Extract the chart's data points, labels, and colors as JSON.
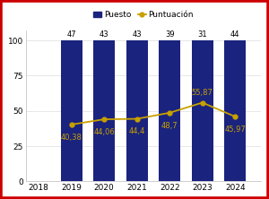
{
  "years": [
    2018,
    2019,
    2020,
    2021,
    2022,
    2023,
    2024
  ],
  "bar_years": [
    2019,
    2020,
    2021,
    2022,
    2023,
    2024
  ],
  "bar_values": [
    100,
    100,
    100,
    100,
    100,
    100
  ],
  "bar_labels": [
    "47",
    "43",
    "43",
    "39",
    "31",
    "44"
  ],
  "line_years": [
    2019,
    2020,
    2021,
    2022,
    2023,
    2024
  ],
  "line_values": [
    40.38,
    44.06,
    44.4,
    48.7,
    55.87,
    45.97
  ],
  "line_labels": [
    "40,38",
    "44,06",
    "44,4",
    "48,7",
    "55,87",
    "45,97"
  ],
  "bar_color": "#1a237e",
  "line_color": "#c8a000",
  "marker_color": "#c8a000",
  "background_color": "#ffffff",
  "border_color": "#cc0000",
  "ylim": [
    0,
    107
  ],
  "yticks": [
    0,
    25,
    50,
    75,
    100
  ],
  "legend_puesto": "Puesto",
  "legend_puntuacion": "Puntuación",
  "bar_width": 0.65,
  "label_fontsize": 6.0,
  "tick_fontsize": 6.5,
  "line_label_offsets": {
    "2019": [
      0,
      -7
    ],
    "2020": [
      0,
      -7
    ],
    "2021": [
      0,
      -7
    ],
    "2022": [
      0,
      -7
    ],
    "2023": [
      0,
      5
    ],
    "2024": [
      0,
      -7
    ]
  }
}
